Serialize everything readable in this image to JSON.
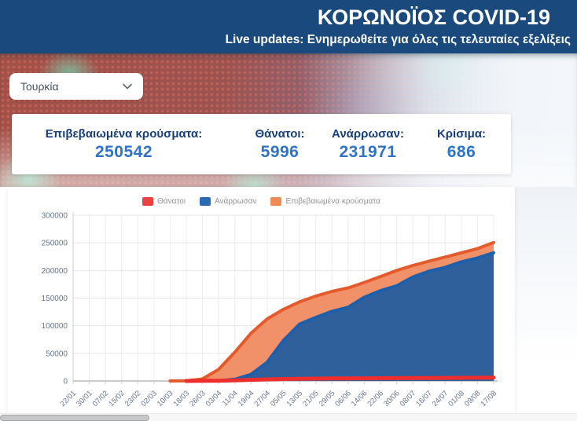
{
  "header": {
    "title": "ΚΟΡΩΝΟΪΟΣ COVID-19",
    "subtitle": "Live updates: Ενημερωθείτε για όλες τις τελευταίες εξελίξεις"
  },
  "country_select": {
    "value": "Τουρκία"
  },
  "stats": [
    {
      "label": "Επιβεβαιωμένα κρούσματα:",
      "value": "250542"
    },
    {
      "label": "Θάνατοι:",
      "value": "5996"
    },
    {
      "label": "Ανάρρωσαν:",
      "value": "231971"
    },
    {
      "label": "Κρίσιμα:",
      "value": "686"
    }
  ],
  "colors": {
    "topbar_bg": "#1a4a7d",
    "stat_label": "#173f7b",
    "stat_value": "#2e73c4",
    "deaths_line": "#ee2d2d",
    "recovered_line": "#1c5fad",
    "recovered_fill": "#30609c",
    "confirmed_line": "#e55a2b",
    "confirmed_fill": "#f09169",
    "grid": "#e6e6e6",
    "tick_text": "#66758c"
  },
  "chart_data": {
    "type": "area",
    "title": "",
    "xlabel": "",
    "ylabel": "",
    "ylim": [
      0,
      300000
    ],
    "yticks": [
      0,
      50000,
      100000,
      150000,
      200000,
      250000,
      300000
    ],
    "grid": true,
    "legend_position": "top",
    "categories": [
      "22/01",
      "30/01",
      "07/02",
      "15/02",
      "23/02",
      "02/03",
      "10/03",
      "18/03",
      "26/03",
      "03/04",
      "11/04",
      "19/04",
      "27/04",
      "05/05",
      "13/05",
      "21/05",
      "29/05",
      "06/06",
      "14/06",
      "22/06",
      "30/06",
      "08/07",
      "16/07",
      "24/07",
      "01/08",
      "09/08",
      "17/08"
    ],
    "series": [
      {
        "name": "Θάνατοι",
        "color": "#ee2d2d",
        "fill": "none",
        "swatch": "#e94341",
        "width": 5,
        "values": [
          null,
          null,
          null,
          null,
          null,
          null,
          null,
          3,
          75,
          425,
          1101,
          2017,
          2900,
          3520,
          3952,
          4249,
          4489,
          4648,
          4807,
          5001,
          5131,
          5282,
          5440,
          5580,
          5710,
          5829,
          5996
        ]
      },
      {
        "name": "Ανάρρωσαν",
        "color": "#1c5fad",
        "fill": "#30609c",
        "swatch": "#2a6cb2",
        "width": 4,
        "values": [
          null,
          null,
          null,
          null,
          null,
          null,
          null,
          null,
          26,
          484,
          2965,
          11976,
          33791,
          73285,
          102874,
          114990,
          125963,
          133400,
          151417,
          163402,
          172211,
          187959,
          198820,
          205546,
          215516,
          222656,
          231971
        ]
      },
      {
        "name": "Επιβεβαιωμένα κρούσματα",
        "color": "#e55a2b",
        "fill": "#f09169",
        "swatch": "#ef8b55",
        "width": 4,
        "values": [
          null,
          null,
          null,
          null,
          null,
          null,
          0,
          191,
          3629,
          20921,
          52167,
          86306,
          112261,
          129491,
          143114,
          153548,
          162120,
          168340,
          178239,
          188897,
          199906,
          208938,
          216873,
          224252,
          231869,
          239622,
          250542
        ]
      }
    ]
  }
}
